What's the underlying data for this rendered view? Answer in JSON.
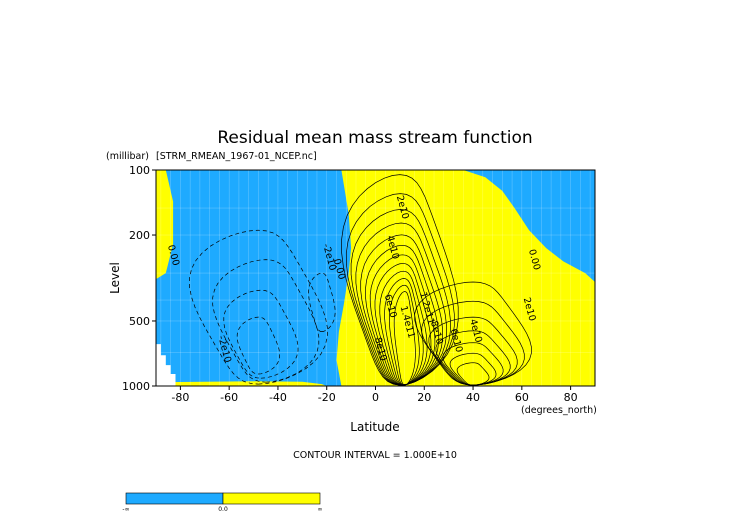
{
  "chart_data": {
    "type": "contour",
    "title": "Residual mean mass stream function",
    "subtitle": "[STRM_RMEAN_1967-01_NCEP.nc]",
    "xlabel": "Latitude",
    "ylabel": "Level",
    "x_units": "(degrees_north)",
    "y_units": "(millibar)",
    "xlim": [
      -90,
      90
    ],
    "ylim": [
      1000,
      100
    ],
    "y_scale": "log",
    "x_ticks": [
      "-80",
      "-60",
      "-40",
      "-20",
      "0",
      "20",
      "40",
      "60",
      "80"
    ],
    "y_ticks": [
      "100",
      "200",
      "500",
      "1000"
    ],
    "contour_interval_text": "CONTOUR INTERVAL = 1.000E+10",
    "contour_labels": [
      {
        "text": "0.00",
        "lat": -84,
        "lev": 250
      },
      {
        "text": "-2e10",
        "lat": -20,
        "lev": 255
      },
      {
        "text": "0.00",
        "lat": -16,
        "lev": 290
      },
      {
        "text": "-2e10",
        "lat": -63,
        "lev": 680
      },
      {
        "text": "2e10",
        "lat": 10,
        "lev": 150
      },
      {
        "text": "4e10",
        "lat": 6,
        "lev": 230
      },
      {
        "text": "6e10",
        "lat": 5,
        "lev": 430
      },
      {
        "text": "8e10",
        "lat": 1,
        "lev": 680
      },
      {
        "text": "1.4e11",
        "lat": 12,
        "lev": 510
      },
      {
        "text": "1.2e11",
        "lat": 20,
        "lev": 440
      },
      {
        "text": "8e10",
        "lat": 24,
        "lev": 570
      },
      {
        "text": "6e10",
        "lat": 32,
        "lev": 620
      },
      {
        "text": "4e10",
        "lat": 40,
        "lev": 560
      },
      {
        "text": "2e10",
        "lat": 62,
        "lev": 445
      },
      {
        "text": "0.00",
        "lat": 64,
        "lev": 262
      }
    ],
    "colorbar": {
      "colors": [
        "#1eaaff",
        "#ffff00"
      ],
      "labels": [
        "-∞",
        "0.0",
        "∞"
      ]
    },
    "colors": {
      "negative": "#1eaaff",
      "positive": "#ffff00",
      "missing": "#ffffff"
    }
  }
}
